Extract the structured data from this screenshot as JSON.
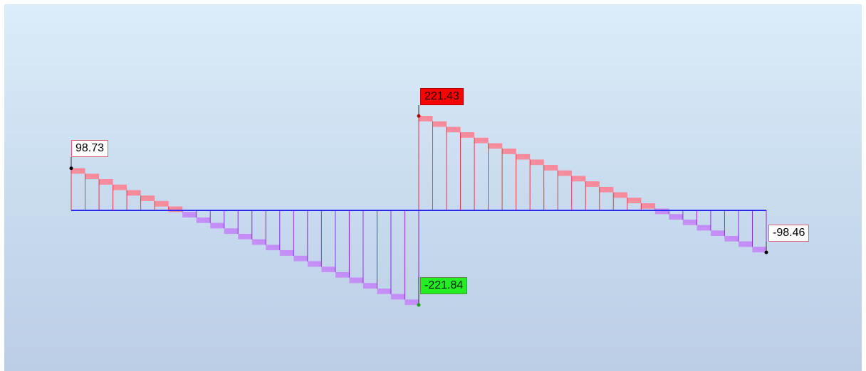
{
  "labels": {
    "start": "98.73",
    "max": "221.43",
    "min": "-221.84",
    "end": "-98.46"
  },
  "colors": {
    "positive_fill": "#f68a9a",
    "positive_line": "#e8384a",
    "negative_fill": "#c48cf5",
    "negative_line": "#8a2be2",
    "baseline": "#2a2af0",
    "max_label": "#ff0000",
    "min_label": "#22ee22"
  },
  "diagram": {
    "type": "shear-force",
    "segments": [
      {
        "from": 98.73,
        "to": -221.84,
        "stations": 25
      },
      {
        "from": 221.43,
        "to": -98.46,
        "stations": 25
      }
    ]
  }
}
